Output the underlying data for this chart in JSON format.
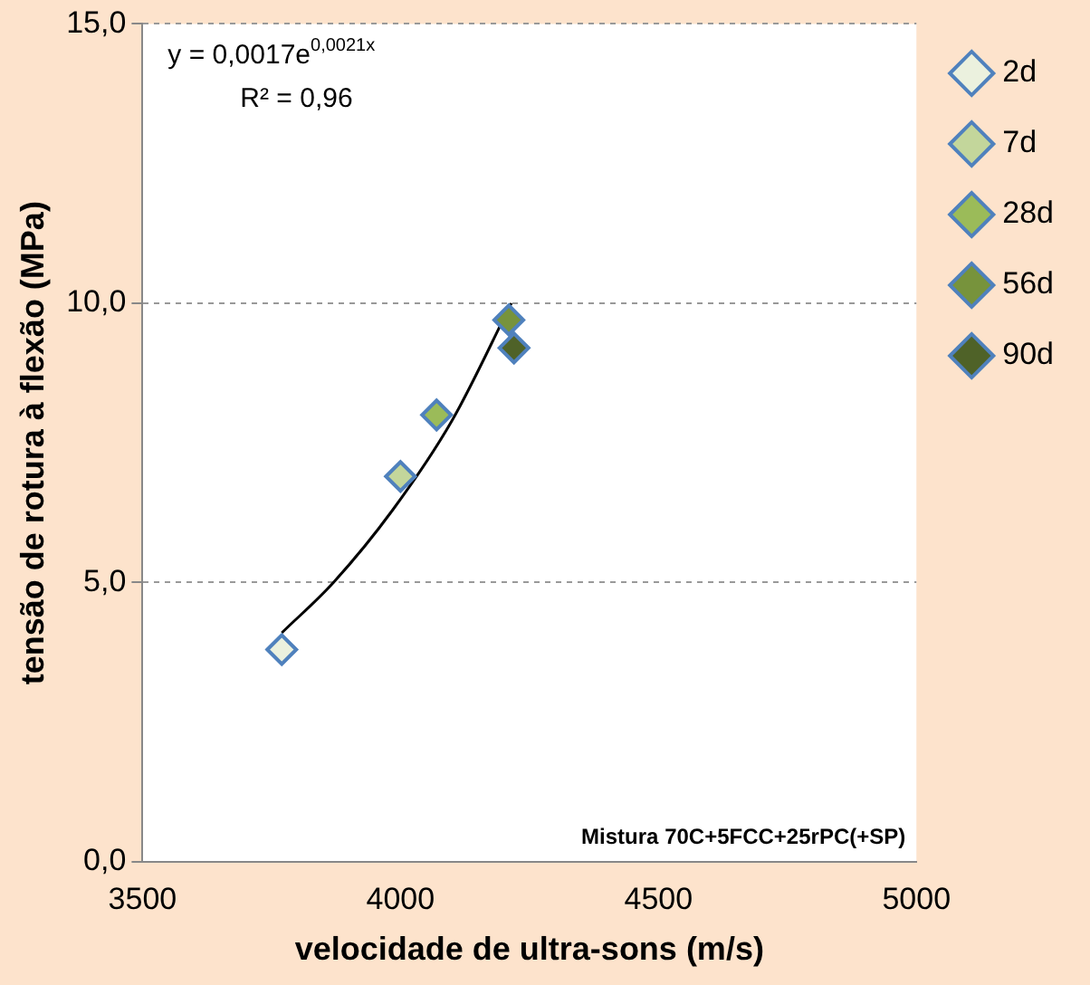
{
  "chart_data": {
    "type": "scatter",
    "xlabel": "velocidade de ultra-sons (m/s)",
    "ylabel": "tensão de rotura à flexão (MPa)",
    "xlim": [
      3500,
      5000
    ],
    "xticks": [
      3500,
      4000,
      4500,
      5000
    ],
    "ylim": [
      0,
      15
    ],
    "yticks": [
      {
        "value": 0,
        "label": "0,0"
      },
      {
        "value": 5,
        "label": "5,0"
      },
      {
        "value": 10,
        "label": "10,0"
      },
      {
        "value": 15,
        "label": "15,0"
      }
    ],
    "grid": "y",
    "legend": "top right",
    "marker": "diamond",
    "series": [
      {
        "name": "2d",
        "color": "#ebf1de",
        "x": [
          3770
        ],
        "values": [
          3.8
        ]
      },
      {
        "name": "7d",
        "color": "#c3d69b",
        "x": [
          4000
        ],
        "values": [
          6.9
        ]
      },
      {
        "name": "28d",
        "color": "#9bbb59",
        "x": [
          4070
        ],
        "values": [
          8.0
        ]
      },
      {
        "name": "56d",
        "color": "#77933c",
        "x": [
          4210
        ],
        "values": [
          9.7
        ]
      },
      {
        "name": "90d",
        "color": "#4f6228",
        "x": [
          4220
        ],
        "values": [
          9.2
        ]
      },
      {
        "type": "line",
        "marker": "none",
        "color": "#000000",
        "x": [
          3770,
          3870,
          3985,
          4100,
          4215
        ],
        "values": [
          4.1,
          5.0,
          6.3,
          7.9,
          10.0
        ]
      }
    ],
    "annotations": [
      "y = 0,0017e$^{0,0021x}$",
      "R² = 0,96",
      "Mistura 70C+5FCC+25rPC(+SP)"
    ]
  }
}
